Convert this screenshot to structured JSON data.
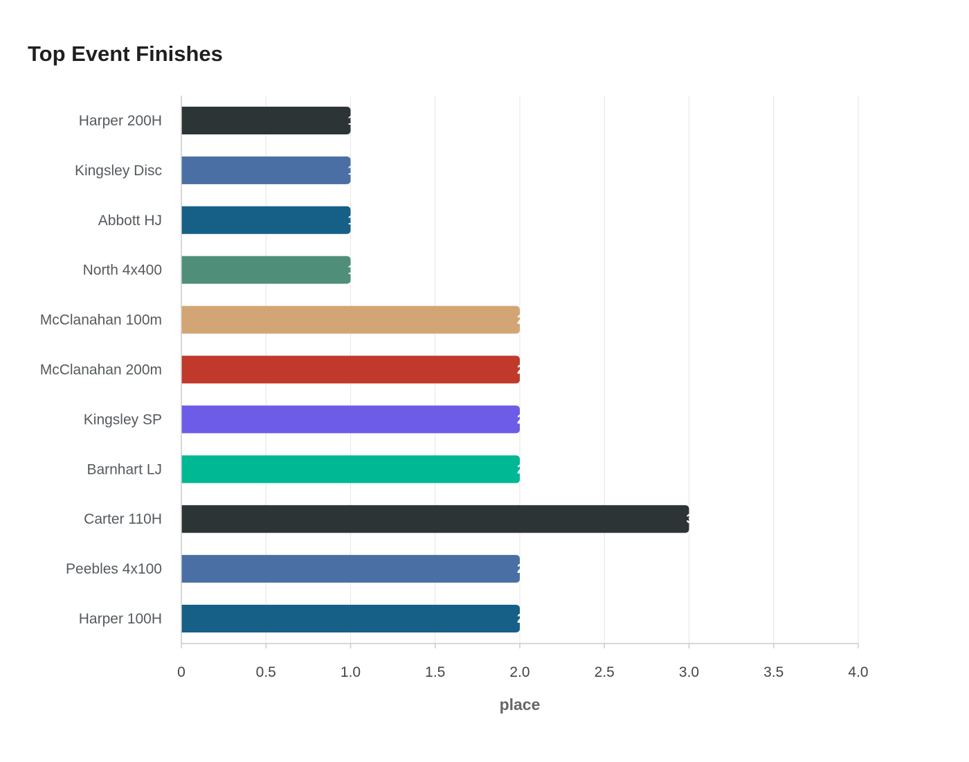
{
  "chart_data": {
    "type": "bar",
    "orientation": "horizontal",
    "title": "Top Event Finishes",
    "xlabel": "place",
    "ylabel": "",
    "xlim": [
      0,
      4
    ],
    "x_ticks": [
      "0",
      "0.5",
      "1.0",
      "1.5",
      "2.0",
      "2.5",
      "3.0",
      "3.5",
      "4.0"
    ],
    "x_tick_values": [
      0,
      0.5,
      1,
      1.5,
      2,
      2.5,
      3,
      3.5,
      4
    ],
    "grid": true,
    "legend": "none",
    "categories": [
      "Harper 200H",
      "Kingsley Disc",
      "Abbott HJ",
      "North 4x400",
      "McClanahan 100m",
      "McClanahan 200m",
      "Kingsley SP",
      "Barnhart LJ",
      "Carter 110H",
      "Peebles 4x100",
      "Harper 100H"
    ],
    "values": [
      1,
      1,
      1,
      1,
      2,
      2,
      2,
      2,
      3,
      2,
      2
    ],
    "colors": [
      "#2d3436",
      "#4a6fa5",
      "#166088",
      "#4f8f7a",
      "#d4a574",
      "#c0392b",
      "#6c5ce7",
      "#00b894",
      "#2d3436",
      "#4a6fa5",
      "#166088"
    ]
  }
}
